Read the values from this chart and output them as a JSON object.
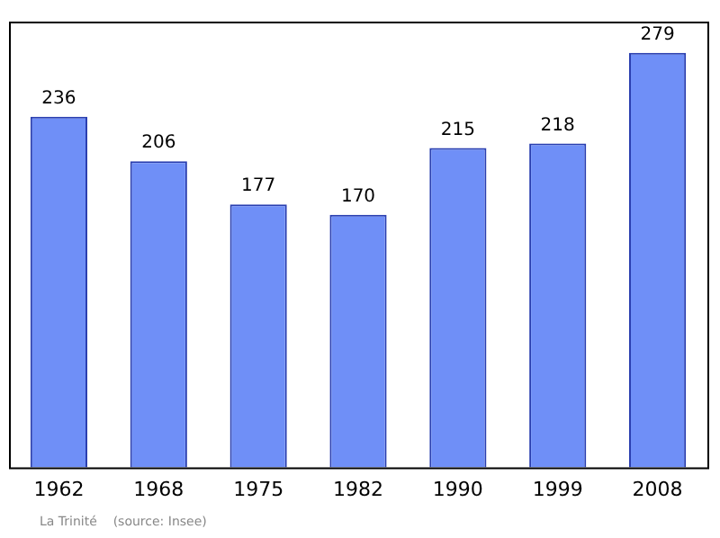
{
  "chart_data": {
    "type": "bar",
    "categories": [
      "1962",
      "1968",
      "1975",
      "1982",
      "1990",
      "1999",
      "2008"
    ],
    "values": [
      236,
      206,
      177,
      170,
      215,
      218,
      279
    ],
    "color": "#6f8ff7",
    "data_labels": true,
    "grid": false,
    "legend": false,
    "annotations": [
      "La Trinité    (source: Insee)"
    ]
  }
}
